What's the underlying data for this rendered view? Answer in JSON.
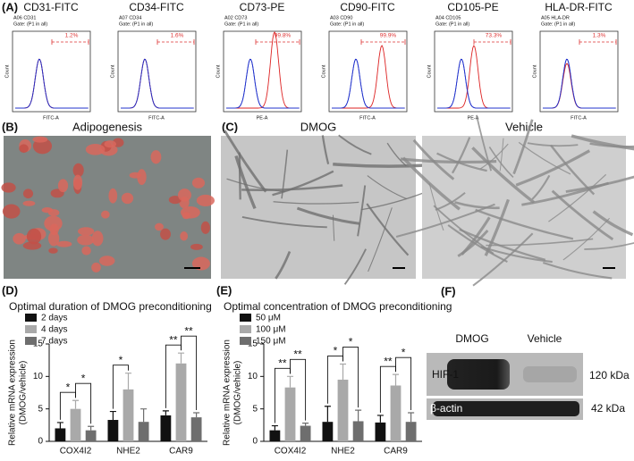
{
  "panels": {
    "A": {
      "label": "(A)",
      "histograms": [
        {
          "title": "CD31-FITC",
          "sample": "A06 CD31",
          "gate": "Gate: (P1 in all)",
          "percent": "1.2%",
          "x_label": "FITC-A",
          "y_label": "Count"
        },
        {
          "title": "CD34-FITC",
          "sample": "A07 CD34",
          "gate": "Gate: (P1 in all)",
          "percent": "1.6%",
          "x_label": "FITC-A",
          "y_label": "Count"
        },
        {
          "title": "CD73-PE",
          "sample": "A02 CD73",
          "gate": "Gate: (P1 in all)",
          "percent": "99.8%",
          "x_label": "PE-A",
          "y_label": "Count"
        },
        {
          "title": "CD90-FITC",
          "sample": "A03 CD90",
          "gate": "Gate: (P1 in all)",
          "percent": "99.9%",
          "x_label": "FITC-A",
          "y_label": "Count"
        },
        {
          "title": "CD105-PE",
          "sample": "A04 CD105",
          "gate": "Gate: (P1 in all)",
          "percent": "73.3%",
          "x_label": "PE-A",
          "y_label": "Count"
        },
        {
          "title": "HLA-DR-FITC",
          "sample": "A05 HLA-DR",
          "gate": "Gate: (P1 in all)",
          "percent": "1.3%",
          "x_label": "FITC-A",
          "y_label": "Count"
        }
      ]
    },
    "B": {
      "label": "(B)",
      "title": "Adipogenesis"
    },
    "C": {
      "label": "(C)",
      "images": [
        "DMOG",
        "Vehicle"
      ]
    },
    "F": {
      "label": "(F)",
      "lanes": [
        "DMOG",
        "Vehicle"
      ],
      "bands": [
        {
          "name": "HIF-1",
          "size": "120 kDa"
        },
        {
          "name": "β-actin",
          "size": "42 kDa"
        }
      ]
    }
  },
  "chart_data": [
    {
      "type": "bar",
      "panel": "(D)",
      "title": "Optimal duration of DMOG preconditioning",
      "ylabel": [
        "Relative mRNA expression",
        "(DMOG/vehicle)"
      ],
      "categories": [
        "COX4I2",
        "NHE2",
        "CAR9"
      ],
      "series": [
        {
          "name": "2 days",
          "color": "#111111",
          "values": [
            2.0,
            3.3,
            4.0
          ],
          "errors": [
            0.9,
            1.3,
            0.7
          ]
        },
        {
          "name": "4 days",
          "color": "#a9a9a9",
          "values": [
            5.0,
            8.0,
            12.0
          ],
          "errors": [
            1.3,
            2.5,
            1.6
          ]
        },
        {
          "name": "7 days",
          "color": "#6e6e6e",
          "values": [
            1.7,
            3.0,
            3.7
          ],
          "errors": [
            0.6,
            2.0,
            0.7
          ]
        }
      ],
      "significance": [
        [
          "*",
          "*"
        ],
        [
          "*"
        ],
        [
          "**",
          "**"
        ]
      ],
      "ylim": [
        0,
        15
      ],
      "yticks": [
        0,
        5,
        10,
        15
      ],
      "legend": "top-left"
    },
    {
      "type": "bar",
      "panel": "(E)",
      "title": "Optimal concentration of DMOG preconditioning",
      "ylabel": [
        "Relative mRNA expression",
        "(DMOG/vehicle)"
      ],
      "categories": [
        "COX4I2",
        "NHE2",
        "CAR9"
      ],
      "series": [
        {
          "name": "50 μM",
          "color": "#111111",
          "values": [
            1.7,
            3.0,
            2.9
          ],
          "errors": [
            0.7,
            2.4,
            1.1
          ]
        },
        {
          "name": "100 μM",
          "color": "#a9a9a9",
          "values": [
            8.3,
            9.5,
            8.6
          ],
          "errors": [
            1.7,
            2.4,
            1.7
          ]
        },
        {
          "name": "150 μM",
          "color": "#6e6e6e",
          "values": [
            2.4,
            3.1,
            3.0
          ],
          "errors": [
            0.4,
            1.7,
            1.4
          ]
        }
      ],
      "significance": [
        [
          "**",
          "**"
        ],
        [
          "*",
          "*"
        ],
        [
          "**",
          "*"
        ]
      ],
      "ylim": [
        0,
        15
      ],
      "yticks": [
        0,
        5,
        10,
        15
      ],
      "legend": "top-left"
    }
  ]
}
